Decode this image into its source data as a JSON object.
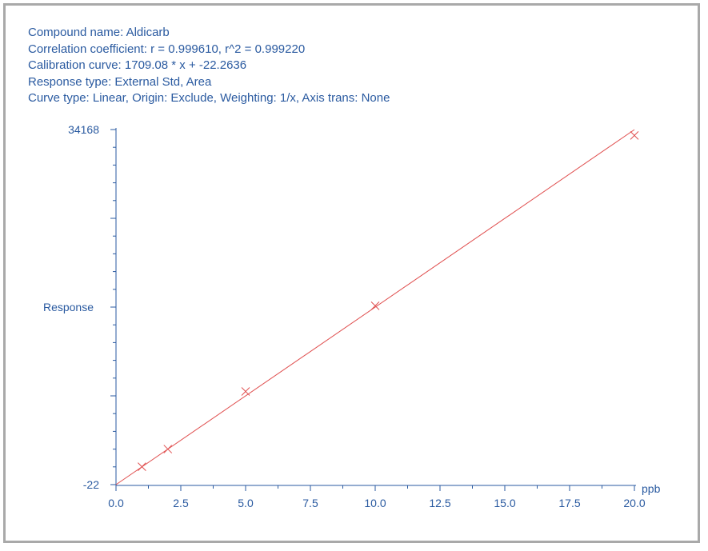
{
  "header": {
    "compound_name": "Compound name: Aldicarb",
    "correlation": "Correlation coefficient: r = 0.999610, r^2 = 0.999220",
    "calibration": "Calibration curve: 1709.08 * x + -22.2636",
    "response_type": "Response type: External Std, Area",
    "curve_type": "Curve type: Linear, Origin: Exclude, Weighting: 1/x, Axis trans: None"
  },
  "chart_data": {
    "type": "scatter",
    "xlabel": "ppb",
    "ylabel": "Response",
    "xlim": [
      0,
      20
    ],
    "ylim": [
      -22,
      34168
    ],
    "x_ticks": [
      "0.0",
      "2.5",
      "5.0",
      "7.5",
      "10.0",
      "12.5",
      "15.0",
      "17.5",
      "20.0"
    ],
    "x_tick_values": [
      0,
      2.5,
      5,
      7.5,
      10,
      12.5,
      15,
      17.5,
      20
    ],
    "y_tick_labels": [
      "34168",
      "-22"
    ],
    "y_tick_label_values": [
      34168,
      -22
    ],
    "points": [
      {
        "x": 1,
        "y": 1700
      },
      {
        "x": 2,
        "y": 3400
      },
      {
        "x": 5,
        "y": 8950
      },
      {
        "x": 10,
        "y": 17200
      },
      {
        "x": 20,
        "y": 33600
      }
    ],
    "fit": {
      "slope": 1709.08,
      "intercept": -22.2636
    },
    "colors": {
      "axis": "#2a5aa0",
      "fit_line": "#e05050",
      "markers": "#e05050"
    }
  }
}
